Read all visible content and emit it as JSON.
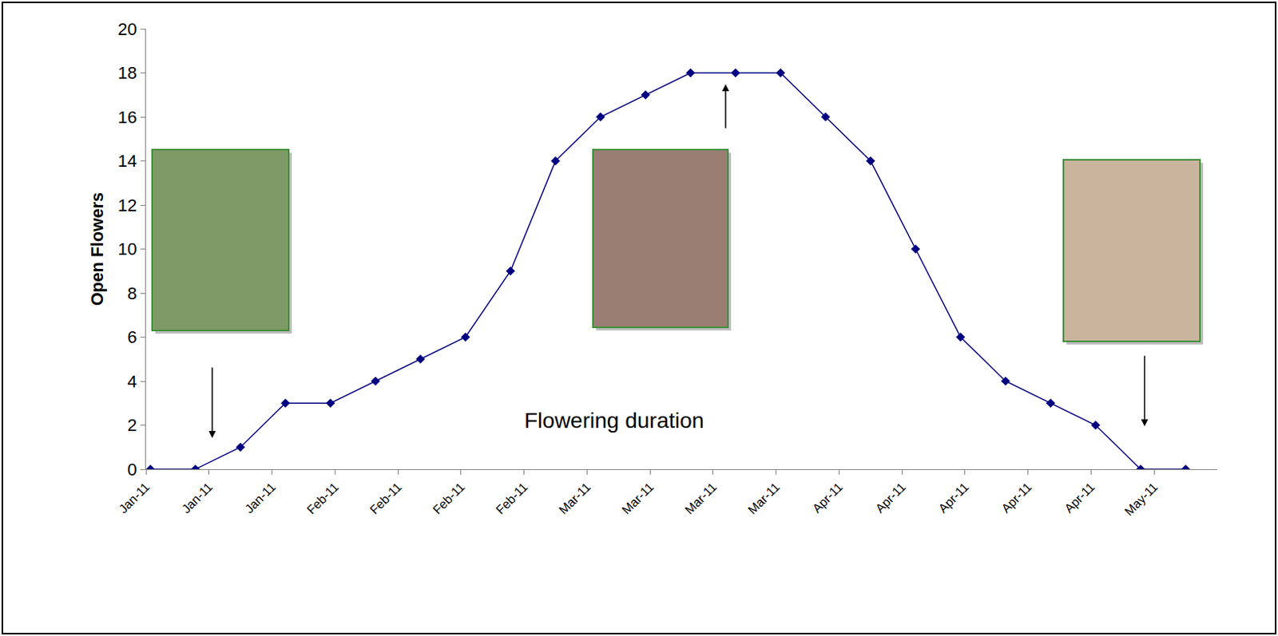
{
  "chart_data": {
    "type": "line",
    "x": [
      0,
      1,
      2,
      3,
      4,
      5,
      6,
      7,
      8,
      9,
      10,
      11,
      12,
      13,
      14,
      15,
      16,
      17,
      18,
      19,
      20,
      21,
      22,
      23
    ],
    "values": [
      0,
      0,
      1,
      3,
      3,
      4,
      5,
      6,
      9,
      14,
      16,
      17,
      18,
      18,
      18,
      16,
      14,
      10,
      6,
      4,
      3,
      2,
      0,
      0
    ],
    "color": "#000080",
    "marker": "diamond",
    "line_style": "solid",
    "ylabel": "Open Flowers",
    "annotations": [
      {
        "text": "Flowering duration",
        "x": 10.3,
        "y": 2.2
      }
    ],
    "xlim": [
      -0.1,
      23.7
    ],
    "xticks": [
      {
        "value": -0.1,
        "label": "Jan-11"
      },
      {
        "value": 1.3,
        "label": "Jan-11"
      },
      {
        "value": 2.7,
        "label": "Jan-11"
      },
      {
        "value": 4.1,
        "label": "Feb-11"
      },
      {
        "value": 5.5,
        "label": "Feb-11"
      },
      {
        "value": 6.9,
        "label": "Feb-11"
      },
      {
        "value": 8.3,
        "label": "Feb-11"
      },
      {
        "value": 9.7,
        "label": "Mar-11"
      },
      {
        "value": 11.1,
        "label": "Mar-11"
      },
      {
        "value": 12.5,
        "label": "Mar-11"
      },
      {
        "value": 13.9,
        "label": "Mar-11"
      },
      {
        "value": 15.3,
        "label": "Apr-11"
      },
      {
        "value": 16.7,
        "label": "Apr-11"
      },
      {
        "value": 18.1,
        "label": "Apr-11"
      },
      {
        "value": 19.5,
        "label": "Apr-11"
      },
      {
        "value": 20.9,
        "label": "Apr-11"
      },
      {
        "value": 22.3,
        "label": "May-11"
      }
    ],
    "ylim": [
      0,
      20
    ],
    "yticks": [
      0,
      2,
      4,
      6,
      8,
      10,
      12,
      14,
      16,
      18,
      20
    ],
    "grid": false
  }
}
